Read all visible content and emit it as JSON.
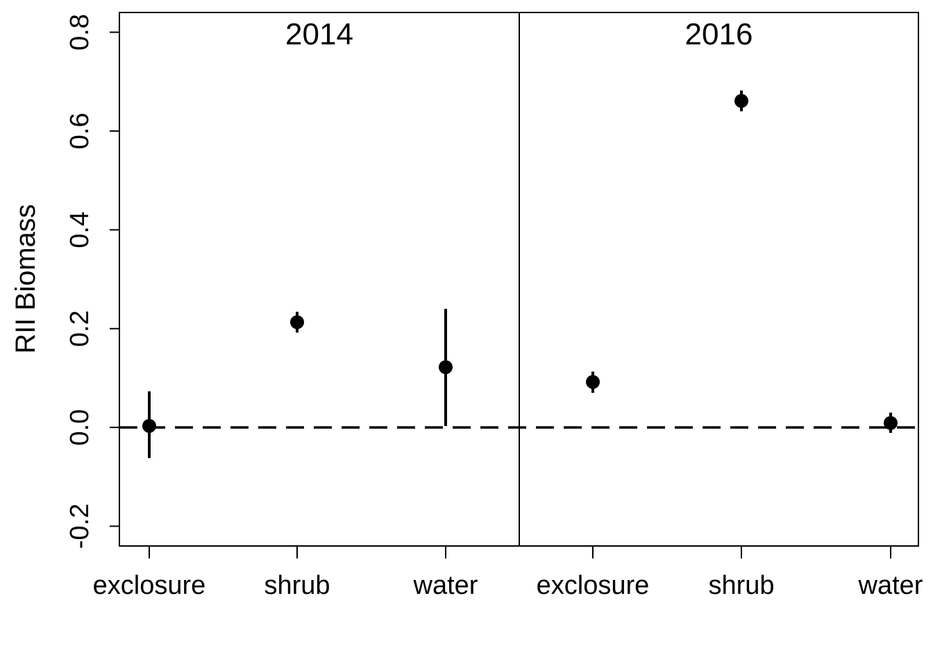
{
  "chart_data": {
    "type": "scatter",
    "ylabel": "RII Biomass",
    "ylim": [
      -0.24,
      0.84
    ],
    "yticks": [
      "-0.2",
      "0.0",
      "0.2",
      "0.4",
      "0.6",
      "0.8"
    ],
    "reference_line": {
      "y": 0.0,
      "style": "dashed"
    },
    "grid": false,
    "panels": [
      {
        "title": "2014",
        "categories": [
          "exclosure",
          "shrub",
          "water"
        ],
        "values": [
          0.003,
          0.213,
          0.122
        ],
        "lower": [
          -0.062,
          0.192,
          0.003
        ],
        "upper": [
          0.073,
          0.234,
          0.24
        ]
      },
      {
        "title": "2016",
        "categories": [
          "exclosure",
          "shrub",
          "water"
        ],
        "values": [
          0.092,
          0.661,
          0.009
        ],
        "lower": [
          0.07,
          0.64,
          -0.011
        ],
        "upper": [
          0.113,
          0.682,
          0.03
        ]
      }
    ],
    "colors": {
      "points": "#000000",
      "lines": "#000000"
    }
  }
}
